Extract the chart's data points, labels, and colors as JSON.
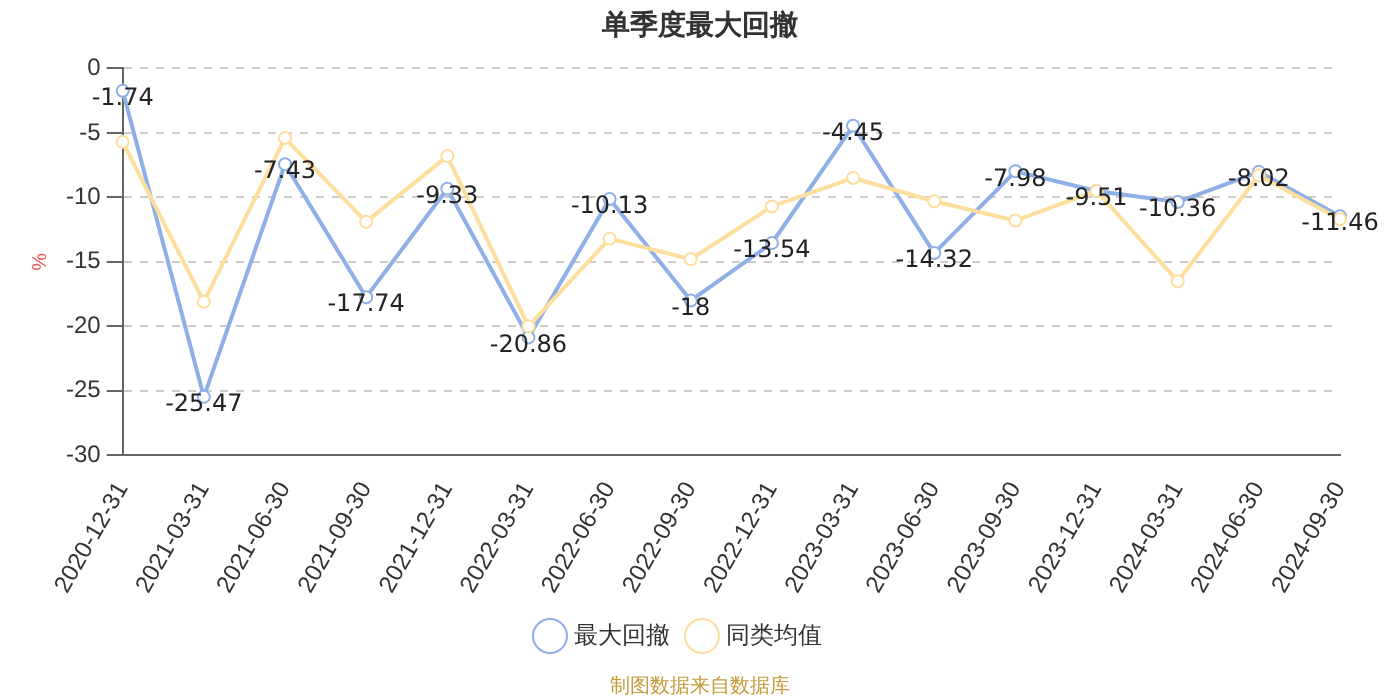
{
  "chart_data": {
    "type": "line",
    "title": "单季度最大回撤",
    "ylabel": "%",
    "categories": [
      "2020-12-31",
      "2021-03-31",
      "2021-06-30",
      "2021-09-30",
      "2021-12-31",
      "2022-03-31",
      "2022-06-30",
      "2022-09-30",
      "2022-12-31",
      "2023-03-31",
      "2023-06-30",
      "2023-09-30",
      "2023-12-31",
      "2024-03-31",
      "2024-06-30",
      "2024-09-30"
    ],
    "series": [
      {
        "name": "最大回撤",
        "color": "#8eb0e6",
        "values": [
          -1.74,
          -25.47,
          -7.43,
          -17.74,
          -9.33,
          -20.86,
          -10.13,
          -18,
          -13.54,
          -4.45,
          -14.32,
          -7.98,
          -9.51,
          -10.36,
          -8.02,
          -11.46
        ],
        "value_labels": [
          "-1.74",
          "-25.47",
          "-7.43",
          "-17.74",
          "-9.33",
          "-20.86",
          "-10.13",
          "-18",
          "-13.54",
          "-4.45",
          "-14.32",
          "-7.98",
          "-9.51",
          "-10.36",
          "-8.02",
          "-11.46"
        ]
      },
      {
        "name": "同类均值",
        "color": "#fdde9c",
        "values": [
          -5.7,
          -18.1,
          -5.4,
          -11.9,
          -6.8,
          -20.0,
          -13.2,
          -14.8,
          -10.7,
          -8.5,
          -10.3,
          -11.8,
          -9.5,
          -16.5,
          -8.3,
          -11.7
        ]
      }
    ],
    "ylim": [
      -30,
      0
    ],
    "yticks": [
      -30,
      -25,
      -20,
      -15,
      -10,
      -5,
      0
    ],
    "grid": "y",
    "legend": "bottom",
    "marker": "circle",
    "line_style": "solid",
    "annotations": [
      "制图数据来自数据库"
    ]
  }
}
